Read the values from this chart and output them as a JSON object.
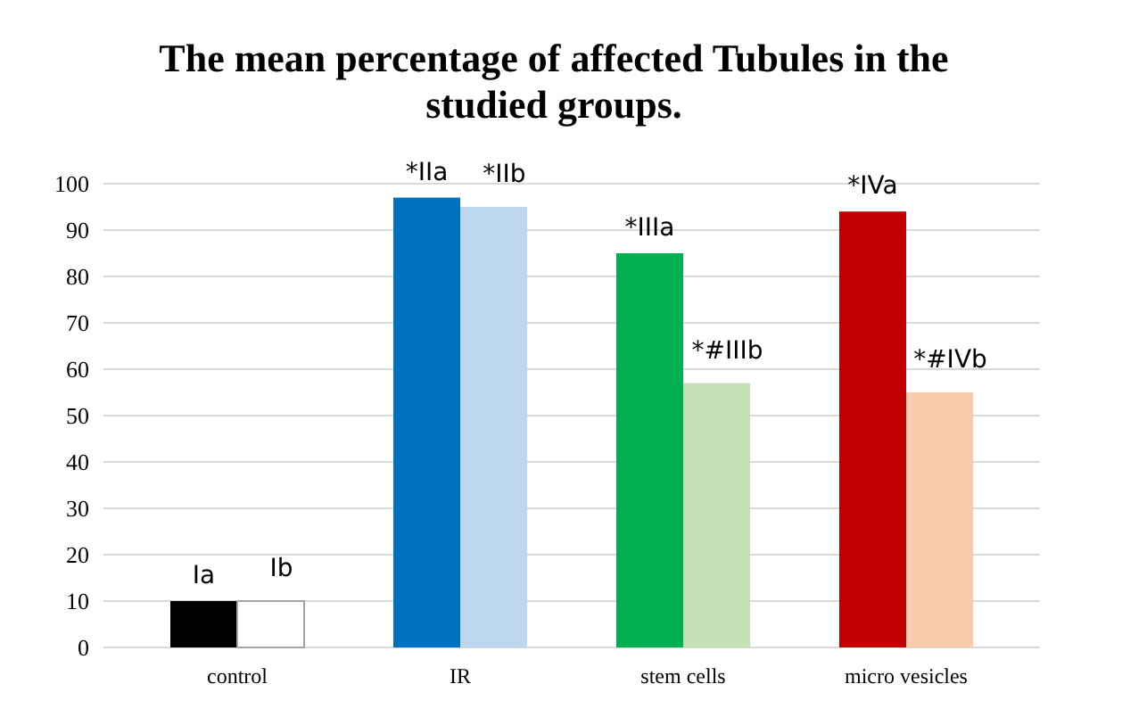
{
  "chart_data": {
    "type": "bar",
    "title": "The mean percentage of affected Tubules in the studied groups.",
    "categories": [
      "control",
      "IR",
      "stem cells",
      "micro vesicles"
    ],
    "series": [
      {
        "colors": [
          "#000000",
          "#0070c0",
          "#00b050",
          "#c00000"
        ],
        "values": [
          10,
          97,
          85,
          94
        ],
        "value_labels": [
          "Ia",
          "*IIa",
          "*IIIa",
          "*IVa"
        ]
      },
      {
        "colors": [
          "#ffffff",
          "#bdd7ee",
          "#c5e0b4",
          "#f8cbad"
        ],
        "values": [
          10,
          95,
          57,
          55
        ],
        "value_labels": [
          "Ib",
          "*IIb",
          "*#IIIb",
          "*#IVb"
        ]
      }
    ],
    "ylim": [
      0,
      100
    ],
    "yticks": [
      0,
      10,
      20,
      30,
      40,
      50,
      60,
      70,
      80,
      90,
      100
    ],
    "grid": "y"
  }
}
